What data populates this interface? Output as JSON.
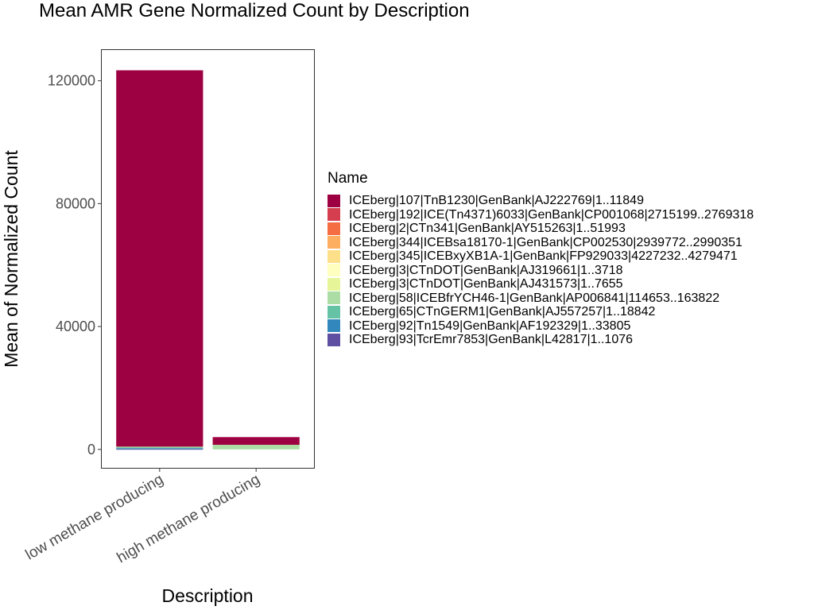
{
  "chart_data": {
    "type": "bar",
    "stacked": true,
    "title": "Mean AMR Gene Normalized Count by Description",
    "xlabel": "Description",
    "ylabel": "Mean of Normalized Count",
    "categories": [
      "low methane producing",
      "high methane producing"
    ],
    "ylim": [
      -6000,
      130000
    ],
    "yticks": [
      0,
      40000,
      80000,
      120000
    ],
    "ytick_labels": [
      "0",
      "40000",
      "80000",
      "120000"
    ],
    "grid": false,
    "legend_title": "Name",
    "legend_position": "right",
    "series": [
      {
        "name": "ICEberg|107|TnB1230|GenBank|AJ222769|1..11849",
        "color": "#9E0142",
        "values": [
          122500,
          2500
        ]
      },
      {
        "name": "ICEberg|192|ICE(Tn4371)6033|GenBank|CP001068|2715199..2769318",
        "color": "#D53E4F",
        "values": [
          0,
          0
        ]
      },
      {
        "name": "ICEberg|2|CTn341|GenBank|AY515263|1..51993",
        "color": "#F46D43",
        "values": [
          0,
          0
        ]
      },
      {
        "name": "ICEberg|344|ICEBsa18170-1|GenBank|CP002530|2939772..2990351",
        "color": "#FDAE61",
        "values": [
          0,
          0
        ]
      },
      {
        "name": "ICEberg|345|ICEBxyXB1A-1|GenBank|FP929033|4227232..4279471",
        "color": "#FEE08B",
        "values": [
          0,
          0
        ]
      },
      {
        "name": "ICEberg|3|CTnDOT|GenBank|AJ319661|1..3718",
        "color": "#FFFFBF",
        "values": [
          0,
          0
        ]
      },
      {
        "name": "ICEberg|3|CTnDOT|GenBank|AJ431573|1..7655",
        "color": "#E6F598",
        "values": [
          0,
          0
        ]
      },
      {
        "name": "ICEberg|58|ICEBfrYCH46-1|GenBank|AP006841|114653..163822",
        "color": "#ABDDA4",
        "values": [
          300,
          1500
        ]
      },
      {
        "name": "ICEberg|65|CTnGERM1|GenBank|AJ557257|1..18842",
        "color": "#66C2A5",
        "values": [
          200,
          0
        ]
      },
      {
        "name": "ICEberg|92|Tn1549|GenBank|AF192329|1..33805",
        "color": "#3288BD",
        "values": [
          300,
          0
        ]
      },
      {
        "name": "ICEberg|93|TcrEmr7853|GenBank|L42817|1..1076",
        "color": "#5E4FA2",
        "values": [
          100,
          0
        ]
      }
    ]
  }
}
